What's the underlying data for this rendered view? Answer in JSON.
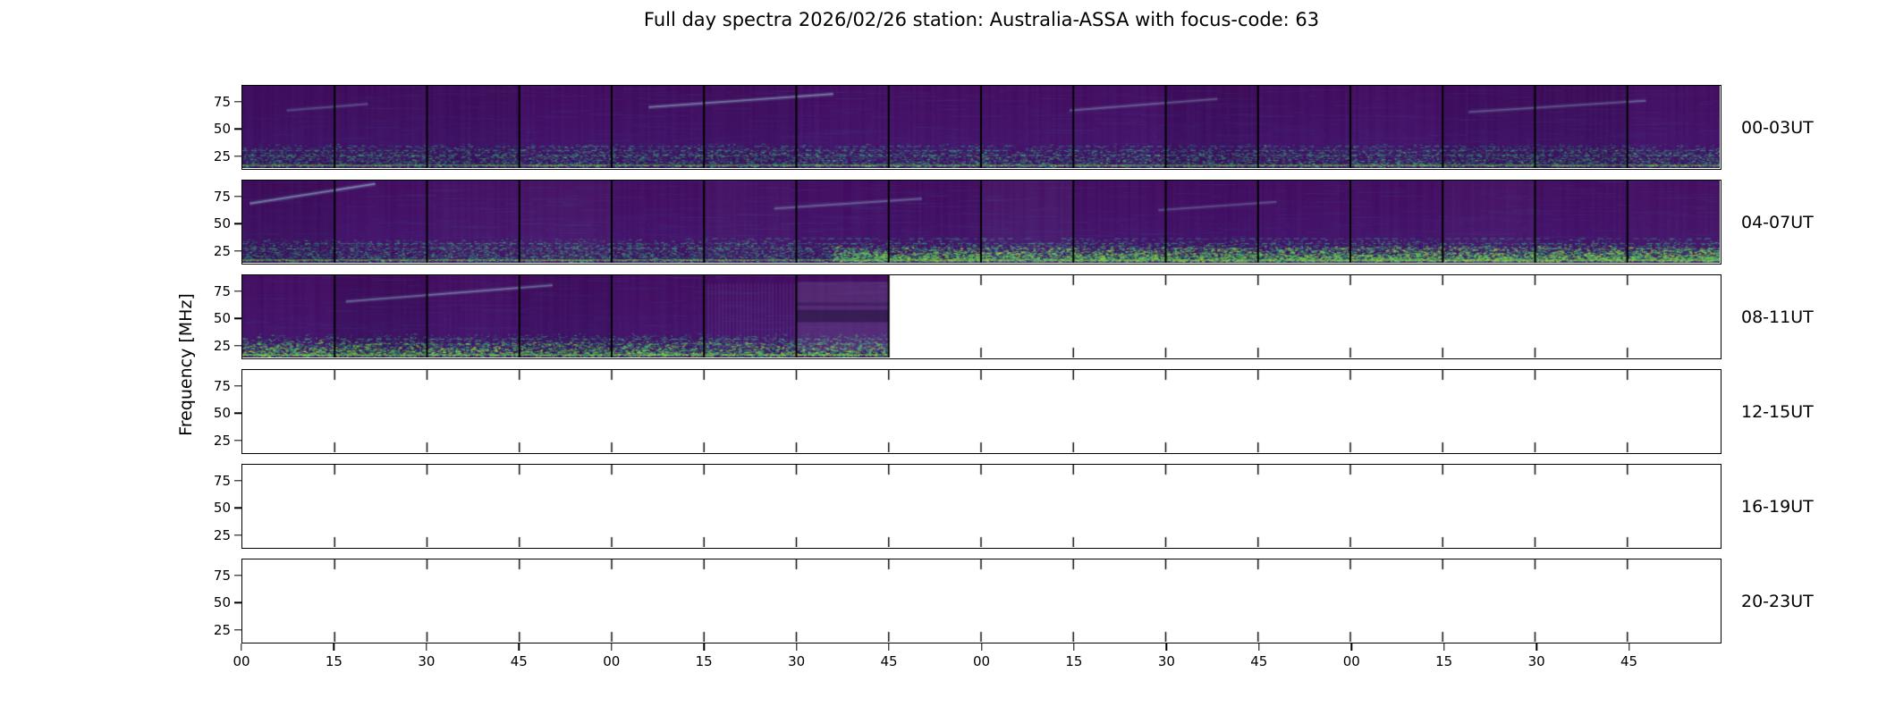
{
  "title": "Full day spectra 2026/02/26 station: Australia-ASSA with focus-code: 63",
  "meta": {
    "date": "2026/02/26",
    "station": "Australia-ASSA",
    "focus_code": "63"
  },
  "chart_data": {
    "type": "heatmap",
    "title": "Full day spectra 2026/02/26 station: Australia-ASSA with focus-code: 63",
    "xlabel": "",
    "ylabel": "Frequency [MHz]",
    "colormap": "viridis",
    "y_tick_labels": [
      "75",
      "50",
      "25"
    ],
    "x_tick_labels": [
      "00",
      "15",
      "30",
      "45",
      "00",
      "15",
      "30",
      "45",
      "00",
      "15",
      "30",
      "45",
      "00",
      "15",
      "30",
      "45"
    ],
    "segment_minutes": 15,
    "segments_per_row": 16,
    "rows": [
      {
        "label": "00-03UT",
        "segments_total": 16,
        "segments_filled": 16
      },
      {
        "label": "04-07UT",
        "segments_total": 16,
        "segments_filled": 16
      },
      {
        "label": "08-11UT",
        "segments_total": 16,
        "segments_filled": 7
      },
      {
        "label": "12-15UT",
        "segments_total": 16,
        "segments_filled": 0
      },
      {
        "label": "16-19UT",
        "segments_total": 16,
        "segments_filled": 0
      },
      {
        "label": "20-23UT",
        "segments_total": 16,
        "segments_filled": 0
      }
    ],
    "colors": {
      "spectrogram_background": "#440a5e",
      "spectrogram_mid": "#3b528b",
      "spectrogram_bright": "#35b779",
      "spectrogram_highlight": "#aadc32",
      "frame": "#000000",
      "empty": "#ffffff"
    }
  }
}
